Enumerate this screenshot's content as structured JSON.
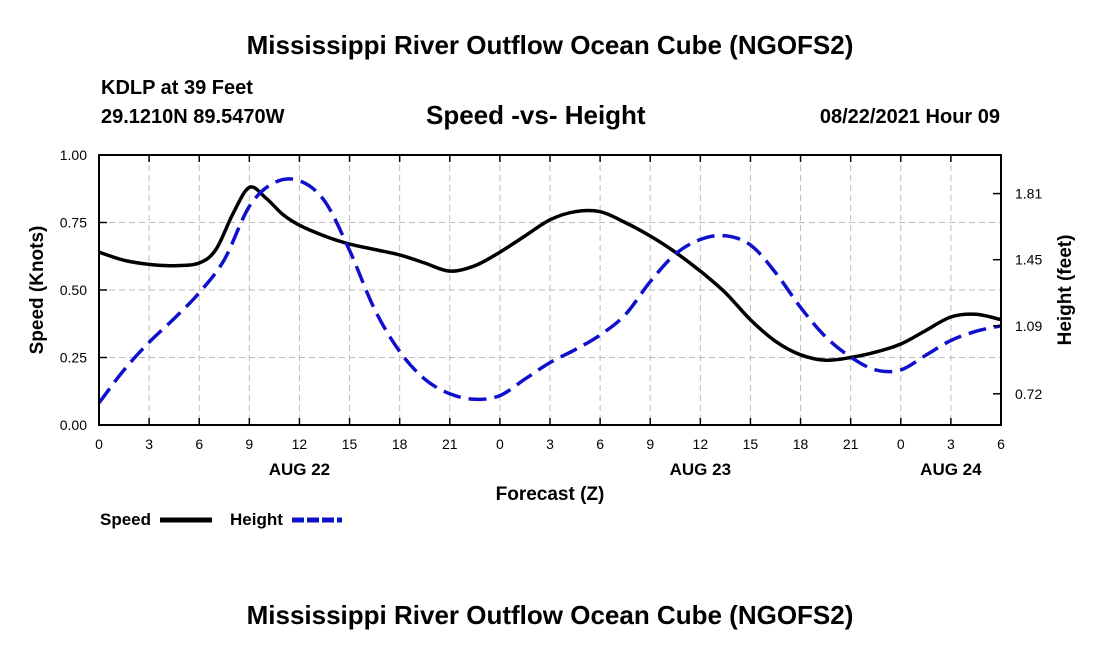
{
  "header": {
    "title": "Mississippi River Outflow Ocean Cube (NGOFS2)",
    "station": "KDLP at 39 Feet",
    "coords": "29.1210N  89.5470W",
    "subtitle": "Speed -vs- Height",
    "datetime": "08/22/2021 Hour 09"
  },
  "footer": {
    "title": "Mississippi River Outflow Ocean Cube (NGOFS2)"
  },
  "legend": {
    "speed_label": "Speed",
    "height_label": "Height"
  },
  "colors": {
    "speed": "#000000",
    "height": "#1010cc",
    "grid": "#bbbbbb"
  },
  "chart_data": {
    "type": "line",
    "xlabel": "Forecast (Z)",
    "ylabel": "Speed (Knots)",
    "y2label": "Height (feet)",
    "xlim": [
      0,
      54
    ],
    "ylim": [
      0,
      1.0
    ],
    "y2lim": [
      0.55,
      2.02
    ],
    "x_ticks": [
      0,
      3,
      6,
      9,
      12,
      15,
      18,
      21,
      24,
      27,
      30,
      33,
      36,
      39,
      42,
      45,
      48,
      51,
      54
    ],
    "x_tick_labels": [
      "0",
      "3",
      "6",
      "9",
      "12",
      "15",
      "18",
      "21",
      "0",
      "3",
      "6",
      "9",
      "12",
      "15",
      "18",
      "21",
      "0",
      "3",
      "6"
    ],
    "y_ticks": [
      0.0,
      0.25,
      0.5,
      0.75,
      1.0
    ],
    "y_tick_labels": [
      "0.00",
      "0.25",
      "0.50",
      "0.75",
      "1.00"
    ],
    "y2_ticks": [
      0.72,
      1.09,
      1.45,
      1.81
    ],
    "y2_tick_labels": [
      "0.72",
      "1.09",
      "1.45",
      "1.81"
    ],
    "date_labels": [
      {
        "x": 12,
        "label": "AUG 22"
      },
      {
        "x": 36,
        "label": "AUG 23"
      },
      {
        "x": 51,
        "label": "AUG 24"
      }
    ],
    "series": [
      {
        "name": "Speed",
        "axis": "left",
        "x": [
          0,
          1.5,
          3,
          4.5,
          6,
          7,
          8,
          9,
          10,
          11,
          12,
          13.5,
          15,
          16.5,
          18,
          19.5,
          21,
          22.5,
          24,
          25.5,
          27,
          28.5,
          30,
          31.5,
          33,
          34.5,
          36,
          37.5,
          39,
          40.5,
          42,
          43.5,
          45,
          46.5,
          48,
          49.5,
          51,
          52.5,
          54
        ],
        "values": [
          0.64,
          0.61,
          0.595,
          0.59,
          0.6,
          0.65,
          0.78,
          0.88,
          0.84,
          0.78,
          0.74,
          0.7,
          0.67,
          0.65,
          0.63,
          0.6,
          0.57,
          0.59,
          0.64,
          0.7,
          0.76,
          0.79,
          0.79,
          0.75,
          0.7,
          0.64,
          0.57,
          0.49,
          0.39,
          0.31,
          0.26,
          0.24,
          0.25,
          0.27,
          0.3,
          0.35,
          0.4,
          0.41,
          0.39
        ]
      },
      {
        "name": "Height",
        "axis": "right",
        "x": [
          0,
          1.5,
          3,
          4.5,
          6,
          7.5,
          9,
          10.5,
          12,
          13.5,
          15,
          16.5,
          18,
          19.5,
          21,
          22.5,
          24,
          25.5,
          27,
          28.5,
          30,
          31.5,
          33,
          34.5,
          36,
          37.5,
          39,
          40.5,
          42,
          43.5,
          45,
          46.5,
          48,
          49.5,
          51,
          52.5,
          54
        ],
        "values": [
          0.67,
          0.85,
          1.0,
          1.13,
          1.27,
          1.45,
          1.74,
          1.87,
          1.88,
          1.77,
          1.5,
          1.18,
          0.95,
          0.8,
          0.72,
          0.69,
          0.71,
          0.8,
          0.89,
          0.96,
          1.04,
          1.15,
          1.33,
          1.48,
          1.56,
          1.58,
          1.53,
          1.38,
          1.19,
          1.03,
          0.92,
          0.85,
          0.85,
          0.93,
          1.01,
          1.06,
          1.09
        ]
      }
    ]
  }
}
